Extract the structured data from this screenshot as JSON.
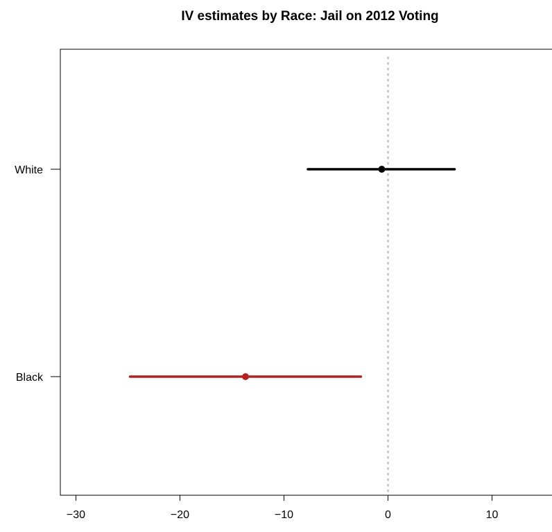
{
  "chart_data": {
    "type": "scatter",
    "title": "IV estimates by Race: Jail on 2012 Voting",
    "xlabel": "",
    "ylabel": "",
    "categories": [
      "White",
      "Black"
    ],
    "points": [
      {
        "category": "White",
        "estimate": -0.6,
        "lower": -7.7,
        "upper": 6.4,
        "color": "#000000"
      },
      {
        "category": "Black",
        "estimate": -13.7,
        "lower": -24.8,
        "upper": -2.6,
        "color": "#B22222"
      }
    ],
    "xlim": [
      -31.5,
      16.5
    ],
    "xticks": [
      -30,
      -20,
      -10,
      0,
      10
    ],
    "xtick_labels": [
      "−30",
      "−20",
      "−10",
      "0",
      "10"
    ],
    "reference_line": {
      "x": 0,
      "style": "dotted",
      "color": "#c8c8c8"
    },
    "grid": false,
    "legend": "none"
  }
}
